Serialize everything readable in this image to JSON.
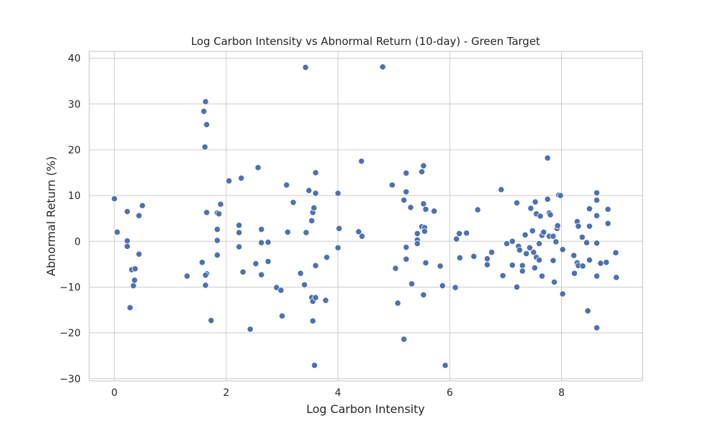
{
  "chart_data": {
    "type": "scatter",
    "title": "Log Carbon Intensity vs Abnormal Return (10-day) - Green Target",
    "xlabel": "Log Carbon Intensity",
    "ylabel": "Abnormal Return (%)",
    "xlim": [
      -0.45,
      9.45
    ],
    "ylim": [
      -30.5,
      41.5
    ],
    "xticks": [
      0,
      2,
      4,
      6,
      8
    ],
    "yticks": [
      -30,
      -20,
      -10,
      0,
      10,
      20,
      30,
      40
    ],
    "grid": true,
    "marker_color": "#4c72b0",
    "points": [
      [
        0.0,
        9.3
      ],
      [
        0.05,
        2.0
      ],
      [
        0.23,
        6.5
      ],
      [
        0.23,
        0.1
      ],
      [
        0.23,
        -1.1
      ],
      [
        0.28,
        -14.5
      ],
      [
        0.31,
        -6.2
      ],
      [
        0.34,
        -9.7
      ],
      [
        0.36,
        -8.5
      ],
      [
        0.37,
        -6.0
      ],
      [
        0.44,
        5.6
      ],
      [
        0.44,
        -2.8
      ],
      [
        0.5,
        7.8
      ],
      [
        1.3,
        -7.6
      ],
      [
        1.57,
        -4.6
      ],
      [
        1.6,
        28.4
      ],
      [
        1.62,
        20.6
      ],
      [
        1.63,
        30.5
      ],
      [
        1.65,
        25.5
      ],
      [
        1.63,
        -9.6
      ],
      [
        1.65,
        -7.1
      ],
      [
        1.63,
        -7.4
      ],
      [
        1.65,
        6.3
      ],
      [
        1.73,
        -17.3
      ],
      [
        1.84,
        6.2
      ],
      [
        1.84,
        2.6
      ],
      [
        1.84,
        0.2
      ],
      [
        1.84,
        -3.0
      ],
      [
        1.87,
        6.0
      ],
      [
        1.9,
        8.1
      ],
      [
        2.05,
        13.2
      ],
      [
        2.23,
        3.5
      ],
      [
        2.23,
        1.9
      ],
      [
        2.23,
        -1.2
      ],
      [
        2.27,
        13.8
      ],
      [
        2.3,
        -6.7
      ],
      [
        2.43,
        -19.2
      ],
      [
        2.53,
        -4.9
      ],
      [
        2.57,
        16.1
      ],
      [
        2.63,
        2.6
      ],
      [
        2.63,
        -0.3
      ],
      [
        2.63,
        -7.3
      ],
      [
        2.75,
        -0.2
      ],
      [
        2.75,
        -4.4
      ],
      [
        2.9,
        -10.1
      ],
      [
        2.98,
        -10.7
      ],
      [
        3.0,
        -16.3
      ],
      [
        3.08,
        12.3
      ],
      [
        3.1,
        2.0
      ],
      [
        3.2,
        8.5
      ],
      [
        3.33,
        -7.0
      ],
      [
        3.4,
        -9.5
      ],
      [
        3.42,
        38.0
      ],
      [
        3.43,
        1.9
      ],
      [
        3.48,
        11.1
      ],
      [
        3.53,
        4.5
      ],
      [
        3.55,
        6.3
      ],
      [
        3.57,
        7.3
      ],
      [
        3.53,
        -12.3
      ],
      [
        3.55,
        -13.1
      ],
      [
        3.55,
        -17.4
      ],
      [
        3.6,
        15.0
      ],
      [
        3.6,
        10.5
      ],
      [
        3.6,
        -5.3
      ],
      [
        3.6,
        -12.3
      ],
      [
        3.58,
        -27.1
      ],
      [
        3.78,
        -12.9
      ],
      [
        3.8,
        -3.5
      ],
      [
        4.0,
        10.5
      ],
      [
        4.02,
        2.8
      ],
      [
        4.0,
        -1.4
      ],
      [
        4.37,
        2.1
      ],
      [
        4.42,
        17.5
      ],
      [
        4.43,
        1.1
      ],
      [
        4.8,
        38.1
      ],
      [
        4.97,
        12.3
      ],
      [
        5.03,
        -5.9
      ],
      [
        5.07,
        -13.5
      ],
      [
        5.18,
        9.0
      ],
      [
        5.18,
        -21.4
      ],
      [
        5.22,
        14.9
      ],
      [
        5.22,
        10.8
      ],
      [
        5.22,
        -1.3
      ],
      [
        5.22,
        -3.9
      ],
      [
        5.3,
        7.4
      ],
      [
        5.32,
        -9.3
      ],
      [
        5.42,
        1.7
      ],
      [
        5.42,
        0.3
      ],
      [
        5.42,
        -0.5
      ],
      [
        5.5,
        15.2
      ],
      [
        5.53,
        16.5
      ],
      [
        5.53,
        8.2
      ],
      [
        5.5,
        3.2
      ],
      [
        5.55,
        3.0
      ],
      [
        5.55,
        2.2
      ],
      [
        5.57,
        7.0
      ],
      [
        5.57,
        -4.7
      ],
      [
        5.53,
        -11.7
      ],
      [
        5.72,
        6.6
      ],
      [
        5.83,
        -5.4
      ],
      [
        5.87,
        -9.7
      ],
      [
        5.92,
        -27.1
      ],
      [
        6.1,
        -10.1
      ],
      [
        6.12,
        0.5
      ],
      [
        6.17,
        1.7
      ],
      [
        6.18,
        -3.6
      ],
      [
        6.3,
        1.8
      ],
      [
        6.43,
        -3.3
      ],
      [
        6.5,
        6.9
      ],
      [
        6.67,
        -5.1
      ],
      [
        6.67,
        -3.8
      ],
      [
        6.75,
        -2.4
      ],
      [
        6.92,
        11.3
      ],
      [
        6.95,
        -7.5
      ],
      [
        7.02,
        -0.5
      ],
      [
        7.12,
        0.0
      ],
      [
        7.12,
        -5.2
      ],
      [
        7.2,
        8.4
      ],
      [
        7.2,
        -10.0
      ],
      [
        7.23,
        -1.1
      ],
      [
        7.25,
        -1.9
      ],
      [
        7.3,
        -5.3
      ],
      [
        7.3,
        -6.5
      ],
      [
        7.35,
        1.4
      ],
      [
        7.37,
        -2.7
      ],
      [
        7.43,
        -1.4
      ],
      [
        7.45,
        7.2
      ],
      [
        7.48,
        2.3
      ],
      [
        7.5,
        -2.4
      ],
      [
        7.52,
        -5.8
      ],
      [
        7.53,
        8.6
      ],
      [
        7.55,
        6.0
      ],
      [
        7.55,
        -3.5
      ],
      [
        7.6,
        -0.5
      ],
      [
        7.6,
        -4.1
      ],
      [
        7.62,
        5.5
      ],
      [
        7.65,
        1.3
      ],
      [
        7.65,
        -7.6
      ],
      [
        7.68,
        2.0
      ],
      [
        7.75,
        18.2
      ],
      [
        7.75,
        9.2
      ],
      [
        7.78,
        6.2
      ],
      [
        7.8,
        5.8
      ],
      [
        7.78,
        1.1
      ],
      [
        7.85,
        1.1
      ],
      [
        7.85,
        -4.2
      ],
      [
        7.87,
        -8.9
      ],
      [
        7.9,
        -0.1
      ],
      [
        7.92,
        2.8
      ],
      [
        7.93,
        3.4
      ],
      [
        7.95,
        10.1
      ],
      [
        7.98,
        10.0
      ],
      [
        8.02,
        -1.8
      ],
      [
        8.02,
        -11.5
      ],
      [
        8.22,
        -3.1
      ],
      [
        8.23,
        -7.0
      ],
      [
        8.28,
        4.3
      ],
      [
        8.3,
        3.3
      ],
      [
        8.28,
        -4.7
      ],
      [
        8.3,
        -5.3
      ],
      [
        8.37,
        0.9
      ],
      [
        8.38,
        -5.4
      ],
      [
        8.45,
        -0.3
      ],
      [
        8.47,
        -15.2
      ],
      [
        8.5,
        7.1
      ],
      [
        8.5,
        3.3
      ],
      [
        8.5,
        -4.1
      ],
      [
        8.63,
        10.6
      ],
      [
        8.63,
        9.0
      ],
      [
        8.63,
        5.6
      ],
      [
        8.63,
        -0.4
      ],
      [
        8.63,
        -7.6
      ],
      [
        8.63,
        -18.9
      ],
      [
        8.7,
        -4.8
      ],
      [
        8.8,
        -4.6
      ],
      [
        8.83,
        7.0
      ],
      [
        8.83,
        3.9
      ],
      [
        8.97,
        -2.5
      ],
      [
        8.98,
        -7.9
      ]
    ]
  }
}
